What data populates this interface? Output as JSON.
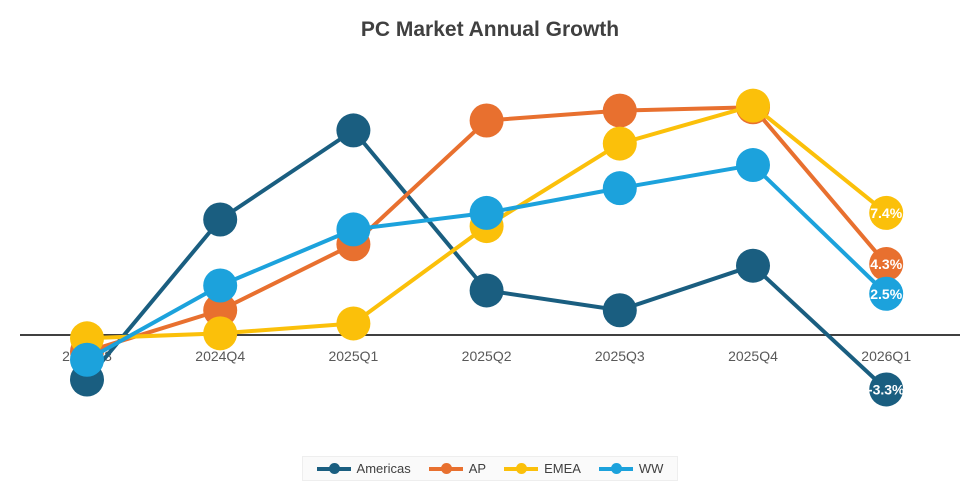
{
  "chart_data": {
    "type": "line",
    "title": "PC Market Annual Growth",
    "categories": [
      "2024Q3",
      "2024Q4",
      "2025Q1",
      "2025Q2",
      "2025Q3",
      "2025Q4",
      "2026Q1"
    ],
    "ylim": [
      -5,
      17
    ],
    "grid": false,
    "legend": "bottom",
    "series": [
      {
        "name": "Americas",
        "color": "#1a5e80",
        "values": [
          -2.7,
          7.0,
          12.4,
          2.7,
          1.5,
          4.2,
          -3.3
        ],
        "last_label": "-3.3%"
      },
      {
        "name": "AP",
        "color": "#e8702f",
        "values": [
          -1.0,
          1.5,
          5.5,
          13.0,
          13.6,
          13.8,
          4.3
        ],
        "last_label": "4.3%"
      },
      {
        "name": "EMEA",
        "color": "#fbc00a",
        "values": [
          -0.2,
          0.1,
          0.7,
          6.6,
          11.6,
          13.9,
          7.4
        ],
        "last_label": "7.4%"
      },
      {
        "name": "WW",
        "color": "#1ca2dc",
        "values": [
          -1.5,
          3.0,
          6.4,
          7.4,
          8.9,
          10.3,
          2.5
        ],
        "last_label": "2.5%"
      }
    ]
  }
}
